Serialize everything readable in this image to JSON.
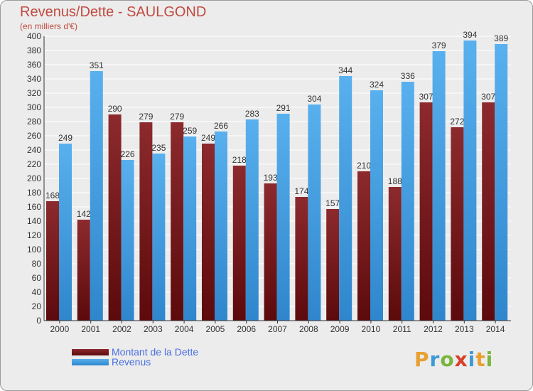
{
  "chart_data": {
    "type": "bar",
    "title": "Revenus/Dette - SAULGOND",
    "subtitle": "(en milliers d'€)",
    "categories": [
      "2000",
      "2001",
      "2002",
      "2003",
      "2004",
      "2005",
      "2006",
      "2007",
      "2008",
      "2009",
      "2010",
      "2011",
      "2012",
      "2013",
      "2014"
    ],
    "series": [
      {
        "name": "Montant de la Dette",
        "color": "#7a1a1e",
        "values": [
          168,
          142,
          290,
          279,
          279,
          249,
          218,
          193,
          174,
          157,
          210,
          188,
          307,
          272,
          307
        ]
      },
      {
        "name": "Revenus",
        "color": "#4aa3e6",
        "values": [
          249,
          351,
          226,
          235,
          259,
          266,
          283,
          291,
          304,
          344,
          324,
          336,
          379,
          394,
          389
        ]
      }
    ],
    "ylim": [
      0,
      400
    ],
    "ytick_step": 20,
    "yticks": [
      "0",
      "20",
      "40",
      "60",
      "80",
      "100",
      "120",
      "140",
      "160",
      "180",
      "200",
      "220",
      "240",
      "260",
      "280",
      "300",
      "320",
      "340",
      "360",
      "380",
      "400"
    ],
    "grid": true,
    "legend_position": "bottom-left"
  },
  "logo": {
    "letters": [
      "P",
      "r",
      "o",
      "x",
      "i",
      "t",
      "i"
    ],
    "colors": [
      "#e8a030",
      "#3d9ad6",
      "#7ab63c",
      "#d8402a",
      "#3d9ad6",
      "#e8a030",
      "#7ab63c"
    ]
  }
}
